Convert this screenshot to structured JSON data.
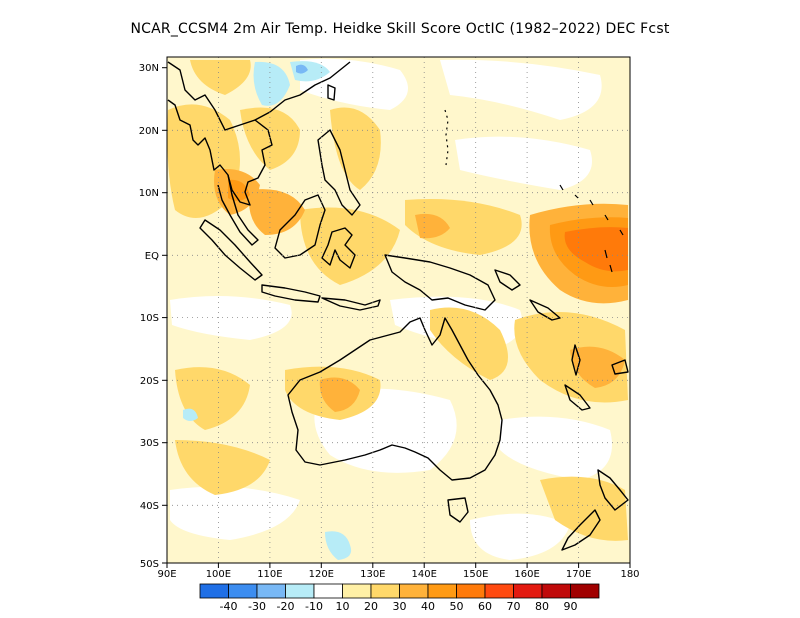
{
  "title": "NCAR_CCSM4  2m Air Temp. Heidke Skill Score OctIC (1982–2022) DEC Fcst",
  "map": {
    "lon_range": [
      90,
      180
    ],
    "lat_range": [
      -50,
      30
    ],
    "lon_ticks": [
      "90E",
      "100E",
      "110E",
      "120E",
      "130E",
      "140E",
      "150E",
      "160E",
      "170E",
      "180"
    ],
    "lat_ticks": [
      "30N",
      "20N",
      "10N",
      "EQ",
      "10S",
      "20S",
      "30S",
      "40S",
      "50S"
    ],
    "background_color": "#fff7cc",
    "coastline_color": "#000000"
  },
  "colorbar": {
    "colors": [
      "#1f6fe6",
      "#3c8df0",
      "#78b8f5",
      "#b7ecf7",
      "#ffffff",
      "#fff0a6",
      "#ffd86a",
      "#ffb23a",
      "#ff9a14",
      "#ff7a0a",
      "#ff4a10",
      "#e31a10",
      "#c00a0a",
      "#a00000"
    ],
    "labels": [
      "-40",
      "-30",
      "-20",
      "-10",
      "10",
      "20",
      "30",
      "40",
      "50",
      "60",
      "70",
      "80",
      "90"
    ]
  },
  "regions": {
    "light_yellow": "#fff0a6",
    "yellow": "#ffd86a",
    "orange": "#ffb23a",
    "dark_orange": "#ff9a14",
    "red_orange": "#ff7a0a",
    "cyan": "#b7ecf7",
    "blue": "#78b8f5",
    "white": "#ffffff"
  }
}
